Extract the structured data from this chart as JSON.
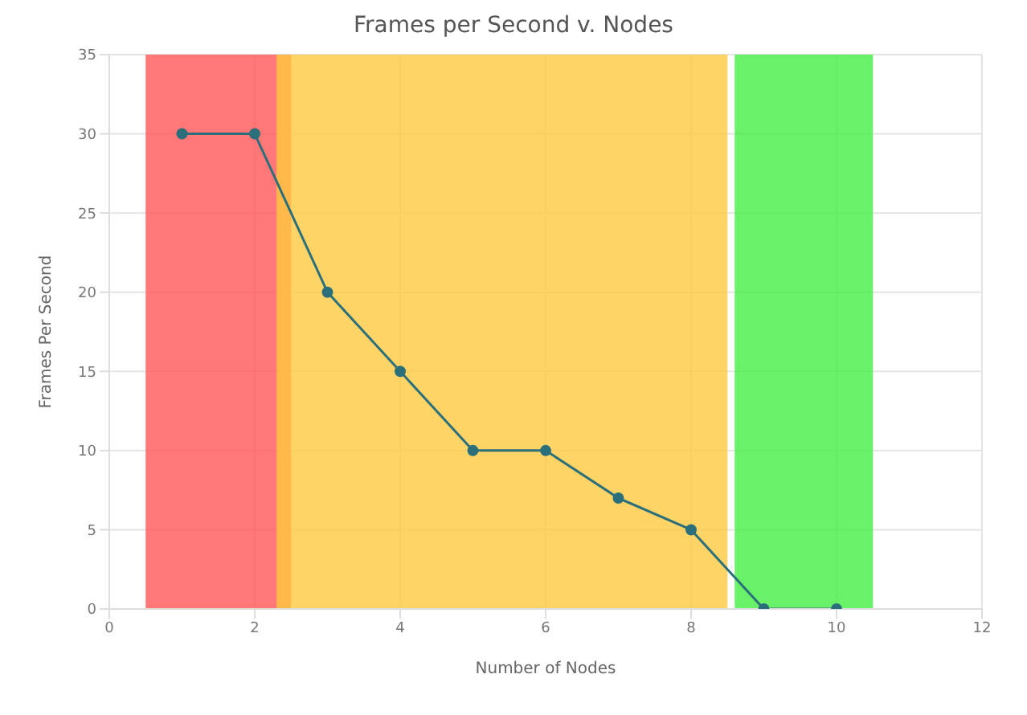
{
  "chart_data": {
    "type": "line",
    "title": "Frames per Second v. Nodes",
    "xlabel": "Number of Nodes",
    "ylabel": "Frames Per Second",
    "x": [
      1,
      2,
      3,
      4,
      5,
      6,
      7,
      8,
      9,
      10
    ],
    "series": [
      {
        "color": "#2b6f7b",
        "values": [
          30,
          30,
          20,
          15,
          10,
          10,
          7,
          5,
          0,
          0
        ]
      }
    ],
    "xlim": [
      0,
      12
    ],
    "xticks": [
      0,
      2,
      4,
      6,
      8,
      10,
      12
    ],
    "ylim": [
      0,
      35
    ],
    "yticks": [
      0,
      5,
      10,
      15,
      20,
      25,
      30,
      35
    ],
    "grid": true,
    "marker": "circle",
    "line_style": "solid",
    "bands": [
      {
        "axis": "x",
        "from": 0.5,
        "to": 2.5,
        "color": "#ff5555"
      },
      {
        "axis": "x",
        "from": 2.3,
        "to": 8.5,
        "color": "#ffc940"
      },
      {
        "axis": "x",
        "from": 8.6,
        "to": 10.5,
        "color": "#44ee44"
      }
    ]
  }
}
